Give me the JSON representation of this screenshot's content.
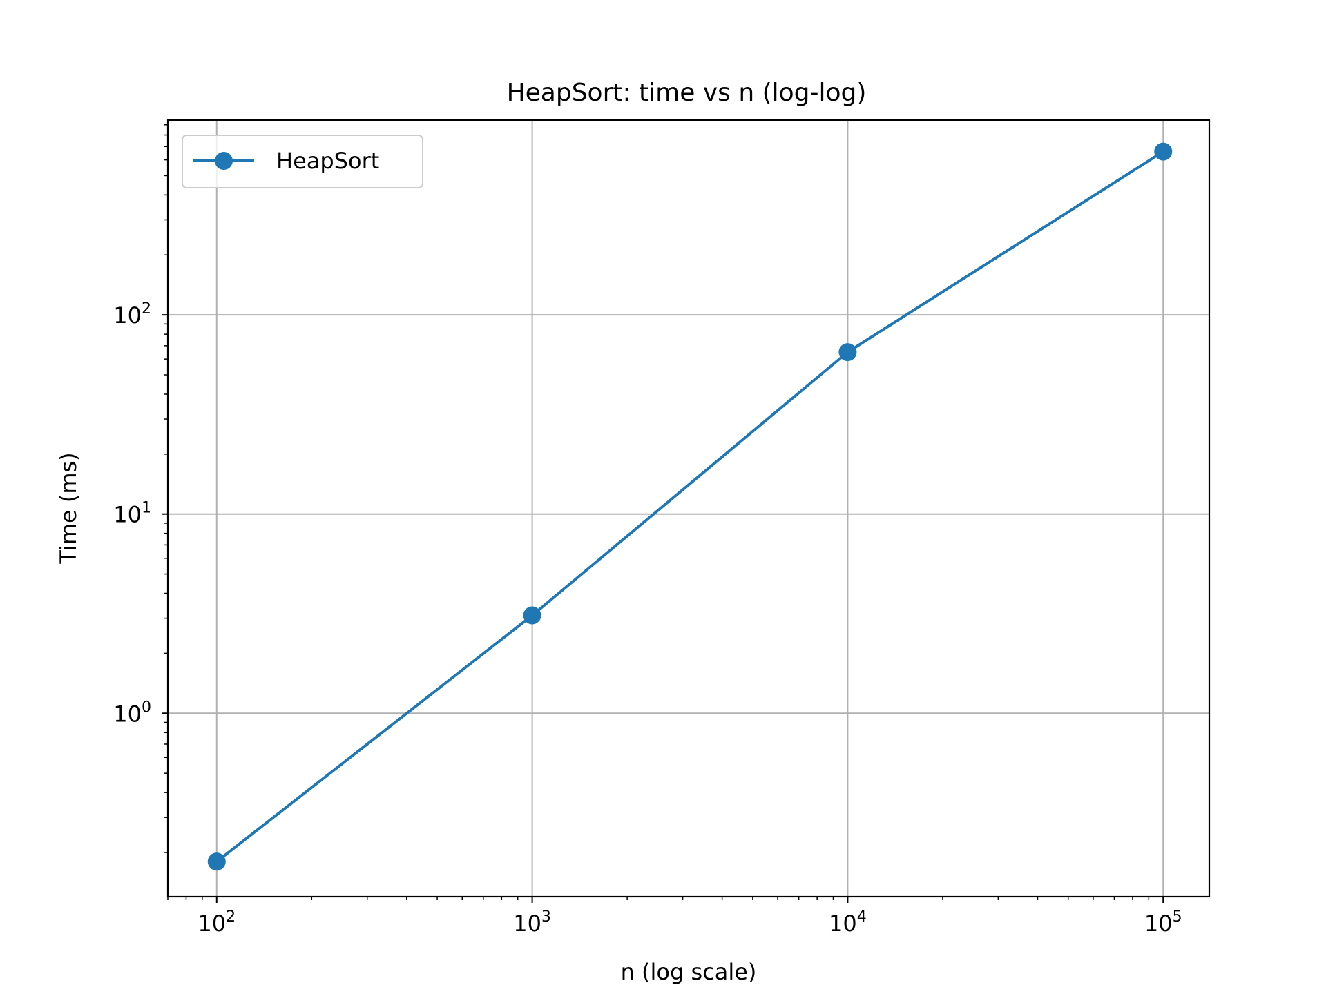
{
  "chart_data": {
    "type": "line",
    "title": "HeapSort: time vs n (log-log)",
    "xlabel": "n (log scale)",
    "ylabel": "Time (ms)",
    "xscale": "log",
    "yscale": "log",
    "xlim": [
      70,
      140000
    ],
    "ylim": [
      0.12,
      950
    ],
    "grid": true,
    "legend_position": "top-left",
    "x_ticks": [
      {
        "base": "10",
        "exp": "2",
        "value": 100
      },
      {
        "base": "10",
        "exp": "3",
        "value": 1000
      },
      {
        "base": "10",
        "exp": "4",
        "value": 10000
      },
      {
        "base": "10",
        "exp": "5",
        "value": 100000
      }
    ],
    "y_ticks": [
      {
        "base": "10",
        "exp": "0",
        "value": 1
      },
      {
        "base": "10",
        "exp": "1",
        "value": 10
      },
      {
        "base": "10",
        "exp": "2",
        "value": 100
      }
    ],
    "series": [
      {
        "name": "HeapSort",
        "color": "#1f77b4",
        "marker": "circle",
        "x": [
          100,
          1000,
          10000,
          100000
        ],
        "y": [
          0.18,
          3.1,
          65,
          660
        ]
      }
    ]
  }
}
